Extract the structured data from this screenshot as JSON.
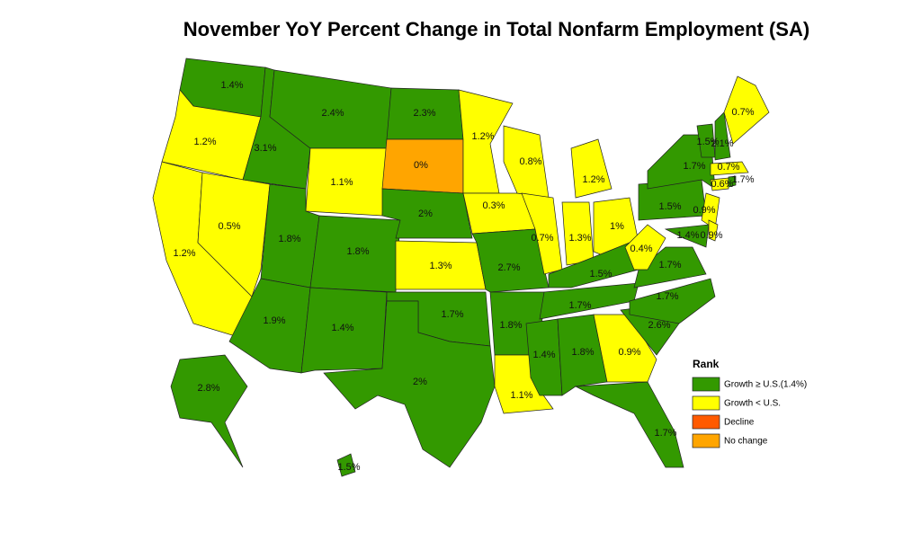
{
  "title": "November YoY Percent Change in Total Nonfarm Employment (SA)",
  "legend": {
    "title": "Rank",
    "items": [
      {
        "label": "Growth ≥ U.S.(1.4%)",
        "color": "#339900"
      },
      {
        "label": "Growth < U.S.",
        "color": "#ffff00"
      },
      {
        "label": "Decline",
        "color": "#ff5a00"
      },
      {
        "label": "No change",
        "color": "#ffa500"
      }
    ]
  },
  "regions": [
    {
      "label": "1.4%",
      "color": "#339900"
    },
    {
      "label": "1.2%",
      "color": "#ffff00"
    },
    {
      "label": "1.2%",
      "color": "#ffff00"
    },
    {
      "label": "0.5%",
      "color": "#ffff00"
    },
    {
      "label": "3.1%",
      "color": "#339900"
    },
    {
      "label": "2.4%",
      "color": "#339900"
    },
    {
      "label": "1.1%",
      "color": "#ffff00"
    },
    {
      "label": "1.8%",
      "color": "#339900"
    },
    {
      "label": "1.9%",
      "color": "#339900"
    },
    {
      "label": "1.8%",
      "color": "#339900"
    },
    {
      "label": "1.4%",
      "color": "#339900"
    },
    {
      "label": "2.3%",
      "color": "#339900"
    },
    {
      "label": "0%",
      "color": "#ffa500"
    },
    {
      "label": "2%",
      "color": "#339900"
    },
    {
      "label": "1.3%",
      "color": "#ffff00"
    },
    {
      "label": "1.7%",
      "color": "#339900"
    },
    {
      "label": "2%",
      "color": "#339900"
    },
    {
      "label": "1.2%",
      "color": "#ffff00"
    },
    {
      "label": "0.3%",
      "color": "#ffff00"
    },
    {
      "label": "2.7%",
      "color": "#339900"
    },
    {
      "label": "1.8%",
      "color": "#339900"
    },
    {
      "label": "1.1%",
      "color": "#ffff00"
    },
    {
      "label": "0.8%",
      "color": "#ffff00"
    },
    {
      "label": "0.7%",
      "color": "#ffff00"
    },
    {
      "label": "1.2%",
      "color": "#ffff00"
    },
    {
      "label": "1.3%",
      "color": "#ffff00"
    },
    {
      "label": "1%",
      "color": "#ffff00"
    },
    {
      "label": "1.5%",
      "color": "#339900"
    },
    {
      "label": "1.7%",
      "color": "#339900"
    },
    {
      "label": "1.4%",
      "color": "#339900"
    },
    {
      "label": "1.8%",
      "color": "#339900"
    },
    {
      "label": "0.9%",
      "color": "#ffff00"
    },
    {
      "label": "1.7%",
      "color": "#339900"
    },
    {
      "label": "2.6%",
      "color": "#339900"
    },
    {
      "label": "1.7%",
      "color": "#339900"
    },
    {
      "label": "1.7%",
      "color": "#339900"
    },
    {
      "label": "0.4%",
      "color": "#ffff00"
    },
    {
      "label": "1.5%",
      "color": "#339900"
    },
    {
      "label": "1.7%",
      "color": "#339900"
    },
    {
      "label": "0.9%",
      "color": "#ffff00"
    },
    {
      "label": "1.4%",
      "color": "#339900"
    },
    {
      "label": "0.9%",
      "color": "#ffff00"
    },
    {
      "label": "0.6%",
      "color": "#ffff00"
    },
    {
      "label": "1.7%",
      "color": "#339900"
    },
    {
      "label": "0.7%",
      "color": "#ffff00"
    },
    {
      "label": "1.5%",
      "color": "#339900"
    },
    {
      "label": "2.1%",
      "color": "#339900"
    },
    {
      "label": "0.7%",
      "color": "#ffff00"
    },
    {
      "label": "2.8%",
      "color": "#339900"
    },
    {
      "label": "1.5%",
      "color": "#339900"
    }
  ]
}
